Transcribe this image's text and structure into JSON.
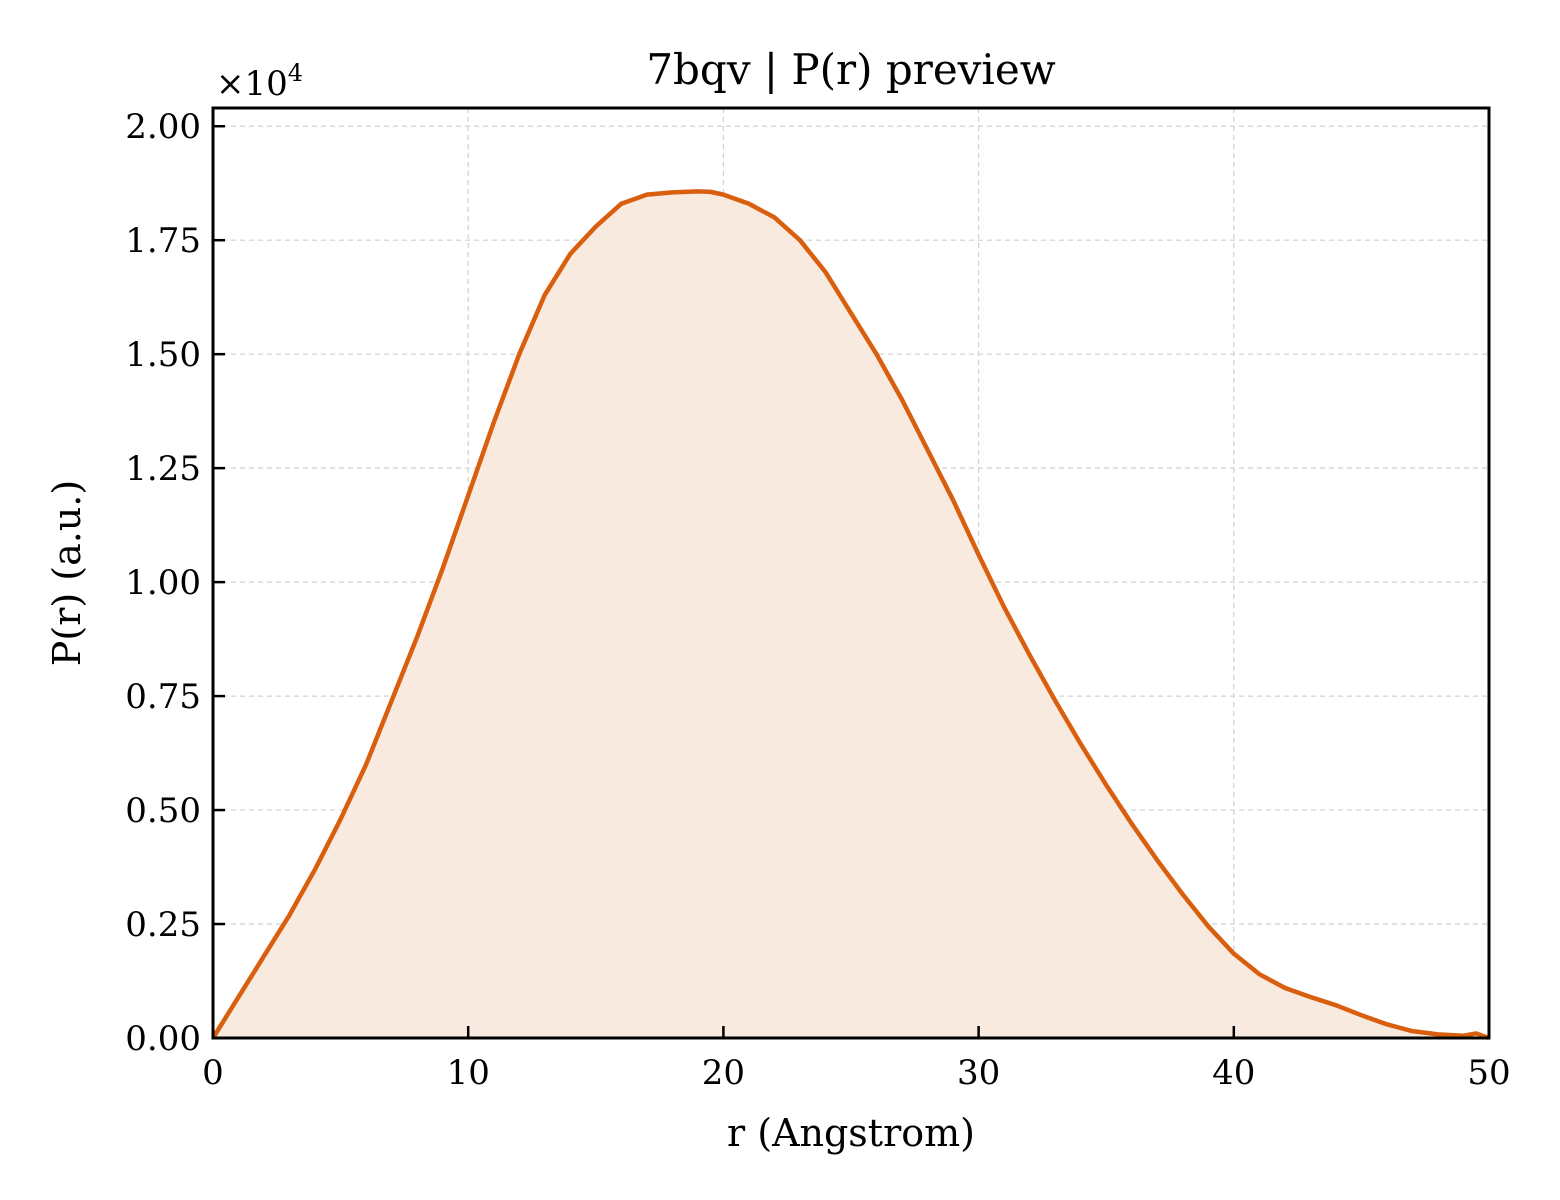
{
  "chart_data": {
    "type": "area",
    "title": "7bqv | P(r) preview",
    "xlabel": "r (Angstrom)",
    "ylabel": "P(r) (a.u.)",
    "y_multiplier_base": "×10",
    "y_multiplier_exp": "4",
    "xlim": [
      0,
      50
    ],
    "ylim": [
      0,
      2.04
    ],
    "grid": true,
    "line_color": "#d95f0e",
    "fill_color": "#f9eae0",
    "x_ticks": [
      "0",
      "10",
      "20",
      "30",
      "40",
      "50"
    ],
    "y_ticks": [
      "0.00",
      "0.25",
      "0.50",
      "0.75",
      "1.00",
      "1.25",
      "1.50",
      "1.75",
      "2.00"
    ],
    "series": [
      {
        "x": [
          0,
          1,
          2,
          3,
          4,
          5,
          6,
          7,
          8,
          9,
          10,
          11,
          12,
          13,
          14,
          15,
          16,
          17,
          18,
          19,
          19.5,
          20,
          21,
          22,
          23,
          24,
          25,
          26,
          27,
          28,
          29,
          30,
          31,
          32,
          33,
          34,
          35,
          36,
          37,
          38,
          39,
          40,
          41,
          42,
          43,
          44,
          45,
          46,
          47,
          48,
          49,
          49.5,
          50
        ],
        "y": [
          0.0,
          0.09,
          0.18,
          0.27,
          0.37,
          0.48,
          0.6,
          0.74,
          0.88,
          1.03,
          1.19,
          1.35,
          1.5,
          1.63,
          1.72,
          1.78,
          1.83,
          1.85,
          1.855,
          1.857,
          1.856,
          1.85,
          1.83,
          1.8,
          1.75,
          1.68,
          1.59,
          1.5,
          1.4,
          1.29,
          1.18,
          1.06,
          0.945,
          0.84,
          0.74,
          0.645,
          0.555,
          0.47,
          0.39,
          0.315,
          0.245,
          0.185,
          0.14,
          0.11,
          0.09,
          0.072,
          0.05,
          0.03,
          0.015,
          0.008,
          0.005,
          0.01,
          0.0
        ]
      }
    ]
  }
}
